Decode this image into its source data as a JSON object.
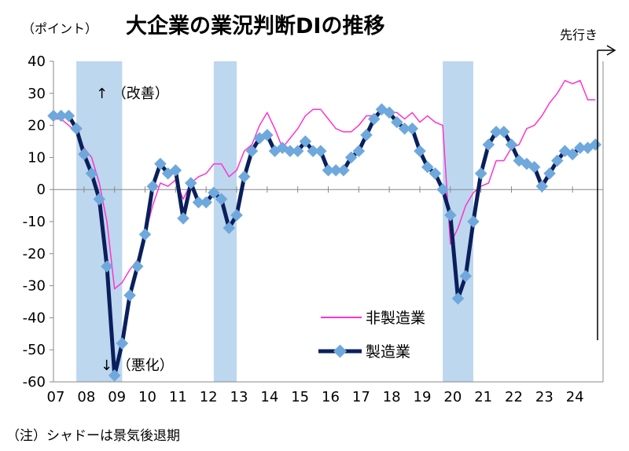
{
  "chart_data": {
    "type": "line",
    "title": "大企業の業況判断DIの推移",
    "unit_label": "（ポイント）",
    "forecast_label": "先行き",
    "note": "（注）シャドーは景気後退期",
    "annotation_up": "↑ （改善）",
    "annotation_down": "↓ （悪化）",
    "ylim": [
      -60,
      40
    ],
    "yticks": [
      "40",
      "30",
      "20",
      "10",
      "0",
      "-10",
      "-20",
      "-30",
      "-40",
      "-50",
      "-60"
    ],
    "xlim": [
      2007.0,
      2025.0
    ],
    "xtick_labels": [
      "07",
      "08",
      "09",
      "10",
      "11",
      "12",
      "13",
      "14",
      "15",
      "16",
      "17",
      "18",
      "19",
      "20",
      "21",
      "22",
      "23",
      "24"
    ],
    "recessions": [
      [
        2007.75,
        2009.25
      ],
      [
        2012.25,
        2013.0
      ],
      [
        2019.75,
        2020.75
      ]
    ],
    "series": [
      {
        "name": "非製造業",
        "color": "#ff33cc",
        "x": [
          2007.0,
          2007.25,
          2007.5,
          2007.75,
          2008.0,
          2008.25,
          2008.5,
          2008.75,
          2009.0,
          2009.25,
          2009.5,
          2009.75,
          2010.0,
          2010.25,
          2010.5,
          2010.75,
          2011.0,
          2011.25,
          2011.5,
          2011.75,
          2012.0,
          2012.25,
          2012.5,
          2012.75,
          2013.0,
          2013.25,
          2013.5,
          2013.75,
          2014.0,
          2014.25,
          2014.5,
          2014.75,
          2015.0,
          2015.25,
          2015.5,
          2015.75,
          2016.0,
          2016.25,
          2016.5,
          2016.75,
          2017.0,
          2017.25,
          2017.5,
          2017.75,
          2018.0,
          2018.25,
          2018.5,
          2018.75,
          2019.0,
          2019.25,
          2019.5,
          2019.75,
          2020.0,
          2020.25,
          2020.5,
          2020.75,
          2021.0,
          2021.25,
          2021.5,
          2021.75,
          2022.0,
          2022.25,
          2022.5,
          2022.75,
          2023.0,
          2023.25,
          2023.5,
          2023.75,
          2024.0,
          2024.25,
          2024.5,
          2024.75
        ],
        "values": [
          22,
          22,
          20,
          18,
          13,
          10,
          2,
          -10,
          -31,
          -29,
          -25,
          -22,
          -14,
          -5,
          2,
          1,
          3,
          -3,
          2,
          4,
          5,
          8,
          8,
          4,
          6,
          12,
          14,
          20,
          24,
          19,
          13,
          16,
          19,
          23,
          25,
          25,
          22,
          19,
          18,
          18,
          20,
          23,
          23,
          25,
          24,
          24,
          22,
          24,
          21,
          23,
          21,
          20,
          -17,
          -12,
          -5,
          -1,
          1,
          2,
          9,
          9,
          13,
          14,
          19,
          20,
          23,
          27,
          30,
          34,
          33,
          34,
          28,
          28
        ]
      },
      {
        "name": "製造業",
        "color": "#0a1f5c",
        "marker_color": "#6fa8dc",
        "x": [
          2007.0,
          2007.25,
          2007.5,
          2007.75,
          2008.0,
          2008.25,
          2008.5,
          2008.75,
          2009.0,
          2009.25,
          2009.5,
          2009.75,
          2010.0,
          2010.25,
          2010.5,
          2010.75,
          2011.0,
          2011.25,
          2011.5,
          2011.75,
          2012.0,
          2012.25,
          2012.5,
          2012.75,
          2013.0,
          2013.25,
          2013.5,
          2013.75,
          2014.0,
          2014.25,
          2014.5,
          2014.75,
          2015.0,
          2015.25,
          2015.5,
          2015.75,
          2016.0,
          2016.25,
          2016.5,
          2016.75,
          2017.0,
          2017.25,
          2017.5,
          2017.75,
          2018.0,
          2018.25,
          2018.5,
          2018.75,
          2019.0,
          2019.25,
          2019.5,
          2019.75,
          2020.0,
          2020.25,
          2020.5,
          2020.75,
          2021.0,
          2021.25,
          2021.5,
          2021.75,
          2022.0,
          2022.25,
          2022.5,
          2022.75,
          2023.0,
          2023.25,
          2023.5,
          2023.75,
          2024.0,
          2024.25,
          2024.5,
          2024.75
        ],
        "values": [
          23,
          23,
          23,
          19,
          11,
          5,
          -3,
          -24,
          -58,
          -48,
          -33,
          -24,
          -14,
          1,
          8,
          5,
          6,
          -9,
          2,
          -4,
          -4,
          -1,
          -3,
          -12,
          -8,
          4,
          12,
          16,
          17,
          12,
          13,
          12,
          12,
          15,
          12,
          12,
          6,
          6,
          6,
          10,
          12,
          17,
          22,
          25,
          24,
          21,
          19,
          19,
          12,
          7,
          5,
          0,
          -8,
          -34,
          -27,
          -10,
          5,
          14,
          18,
          18,
          14,
          9,
          8,
          7,
          1,
          5,
          9,
          12,
          11,
          13,
          13,
          14
        ]
      }
    ]
  }
}
